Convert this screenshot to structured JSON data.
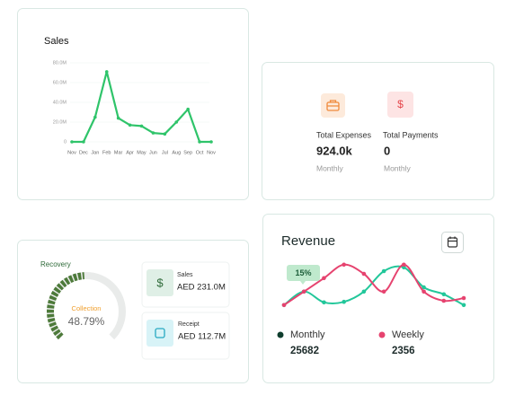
{
  "sales_card": {
    "title": "Sales",
    "chart": {
      "type": "line",
      "categories": [
        "Nov",
        "Dec",
        "Jan",
        "Feb",
        "Mar",
        "Apr",
        "May",
        "Jun",
        "Jul",
        "Aug",
        "Sep",
        "Oct",
        "Nov"
      ],
      "values": [
        0,
        0,
        25,
        71,
        24,
        17,
        16,
        9,
        8,
        20,
        33,
        0,
        0
      ],
      "color": "#2fc46a",
      "ylim": [
        0,
        80
      ],
      "yticks": [
        0,
        {
          "value": 20,
          "label": "20.0M"
        },
        {
          "value": 40,
          "label": "40.0M"
        },
        {
          "value": 60,
          "label": "60.0M"
        },
        {
          "value": 80,
          "label": "80.0M"
        }
      ],
      "grid": true
    }
  },
  "expenses_card": {
    "items": [
      {
        "icon": "",
        "label": "Total Expenses",
        "value": "924.0k",
        "period": "Monthly"
      },
      {
        "icon": "$",
        "label": "Total Payments",
        "value": "0",
        "period": "Monthly"
      }
    ]
  },
  "recovery_card": {
    "title": "Recovery",
    "gauge": {
      "label": "Collection",
      "value": 48.79,
      "value_label": "48.79%"
    },
    "items": [
      {
        "icon": "$",
        "label": "Sales",
        "value": "AED 231.0M"
      },
      {
        "label": "Receipt",
        "value": "AED 112.7M"
      }
    ]
  },
  "revenue_card": {
    "title": "Revenue",
    "annotation": "15%",
    "chart": {
      "type": "line",
      "ylim": [
        0,
        100
      ],
      "series": [
        {
          "name": "Monthly",
          "color": "#22c79a",
          "marker_color": "#0f3d2e",
          "total": 25682,
          "values": [
            17,
            42,
            22,
            23,
            42,
            80,
            87,
            50,
            37,
            17
          ]
        },
        {
          "name": "Weekly",
          "color": "#e6436f",
          "marker_color": "#e6436f",
          "total": 2356,
          "values": [
            17,
            42,
            67,
            92,
            75,
            42,
            92,
            42,
            25,
            30
          ]
        }
      ]
    }
  }
}
